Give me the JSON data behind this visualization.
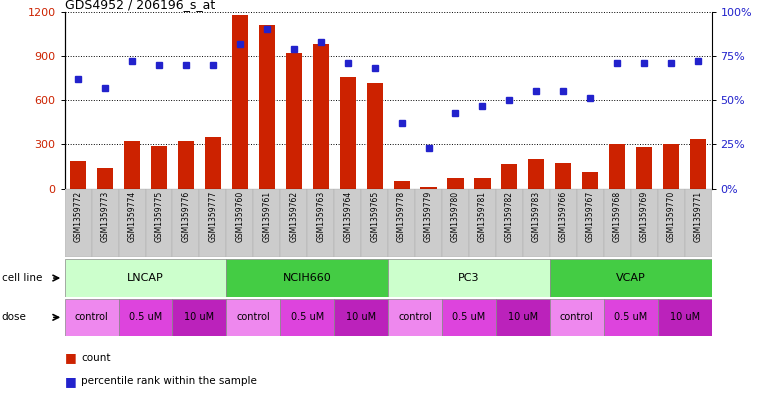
{
  "title": "GDS4952 / 206196_s_at",
  "samples": [
    "GSM1359772",
    "GSM1359773",
    "GSM1359774",
    "GSM1359775",
    "GSM1359776",
    "GSM1359777",
    "GSM1359760",
    "GSM1359761",
    "GSM1359762",
    "GSM1359763",
    "GSM1359764",
    "GSM1359765",
    "GSM1359778",
    "GSM1359779",
    "GSM1359780",
    "GSM1359781",
    "GSM1359782",
    "GSM1359783",
    "GSM1359766",
    "GSM1359767",
    "GSM1359768",
    "GSM1359769",
    "GSM1359770",
    "GSM1359771"
  ],
  "counts": [
    185,
    140,
    320,
    290,
    320,
    350,
    1175,
    1110,
    920,
    980,
    760,
    720,
    55,
    10,
    75,
    75,
    170,
    200,
    175,
    115,
    300,
    285,
    300,
    340
  ],
  "percentiles": [
    62,
    57,
    72,
    70,
    70,
    70,
    82,
    90,
    79,
    83,
    71,
    68,
    37,
    23,
    43,
    47,
    50,
    55,
    55,
    51,
    71,
    71,
    71,
    72
  ],
  "cell_lines": [
    {
      "name": "LNCAP",
      "start": 0,
      "end": 6,
      "color": "#ccffcc"
    },
    {
      "name": "NCIH660",
      "start": 6,
      "end": 12,
      "color": "#44cc44"
    },
    {
      "name": "PC3",
      "start": 12,
      "end": 18,
      "color": "#ccffcc"
    },
    {
      "name": "VCAP",
      "start": 18,
      "end": 24,
      "color": "#44cc44"
    }
  ],
  "doses": [
    {
      "name": "control",
      "start": 0,
      "end": 2,
      "color": "#ee88ee"
    },
    {
      "name": "0.5 uM",
      "start": 2,
      "end": 4,
      "color": "#dd44dd"
    },
    {
      "name": "10 uM",
      "start": 4,
      "end": 6,
      "color": "#bb22bb"
    },
    {
      "name": "control",
      "start": 6,
      "end": 8,
      "color": "#ee88ee"
    },
    {
      "name": "0.5 uM",
      "start": 8,
      "end": 10,
      "color": "#dd44dd"
    },
    {
      "name": "10 uM",
      "start": 10,
      "end": 12,
      "color": "#bb22bb"
    },
    {
      "name": "control",
      "start": 12,
      "end": 14,
      "color": "#ee88ee"
    },
    {
      "name": "0.5 uM",
      "start": 14,
      "end": 16,
      "color": "#dd44dd"
    },
    {
      "name": "10 uM",
      "start": 16,
      "end": 18,
      "color": "#bb22bb"
    },
    {
      "name": "control",
      "start": 18,
      "end": 20,
      "color": "#ee88ee"
    },
    {
      "name": "0.5 uM",
      "start": 20,
      "end": 22,
      "color": "#dd44dd"
    },
    {
      "name": "10 uM",
      "start": 22,
      "end": 24,
      "color": "#bb22bb"
    }
  ],
  "bar_color": "#cc2200",
  "dot_color": "#2222cc",
  "ylim_left": [
    0,
    1200
  ],
  "ylim_right": [
    0,
    100
  ],
  "yticks_left": [
    0,
    300,
    600,
    900,
    1200
  ],
  "yticks_right": [
    0,
    25,
    50,
    75,
    100
  ],
  "ytick_labels_left": [
    "0",
    "300",
    "600",
    "900",
    "1200"
  ],
  "ytick_labels_right": [
    "0%",
    "25%",
    "50%",
    "75%",
    "100%"
  ],
  "bg_color": "#ffffff",
  "plot_bg_color": "#ffffff",
  "tick_label_bg": "#dddddd"
}
